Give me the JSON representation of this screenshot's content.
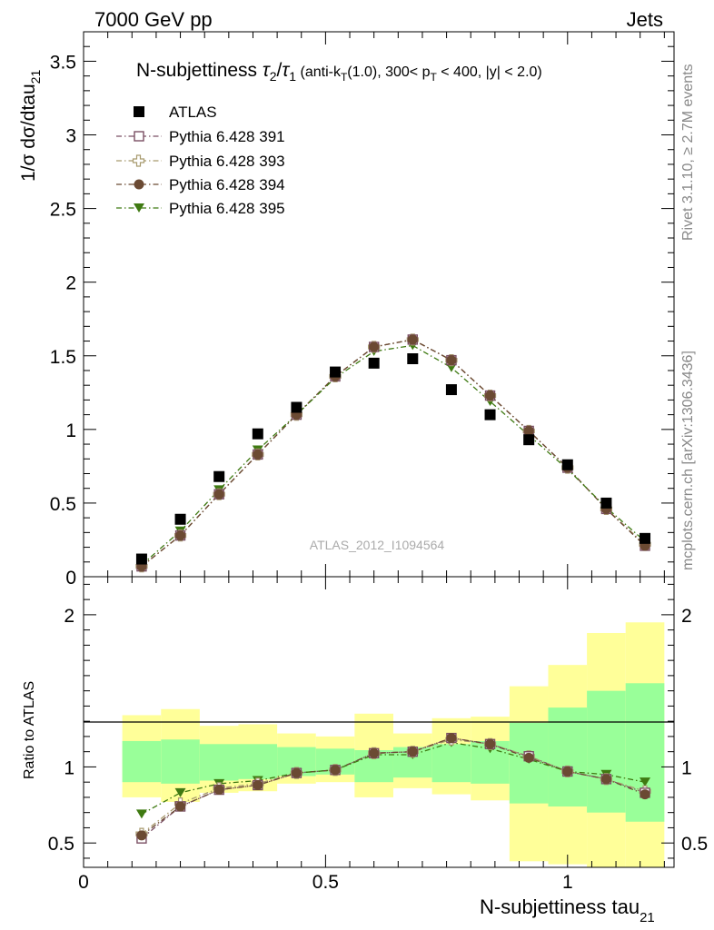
{
  "header": {
    "left": "7000 GeV pp",
    "right": "Jets"
  },
  "side_labels": {
    "rivet": "Rivet 3.1.10, ≥ 2.7M events",
    "mcplots": "mcplots.cern.ch [arXiv:1306.3436]"
  },
  "watermark": "ATLAS_2012_I1094564",
  "colors": {
    "atlas": "#000000",
    "p391": "#7a4f63",
    "p393": "#a89a6e",
    "p394": "#6b4a33",
    "p395": "#3f7a12",
    "band_inner": "#99ff99",
    "band_outer": "#ffff99"
  },
  "chart_data": [
    {
      "type": "scatter",
      "panel": "main",
      "title_parts": {
        "lead": "N-subjettiness ",
        "tau2": "τ",
        "sub2": "2",
        "slash": "/",
        "tau1": "τ",
        "sub1": "1",
        "cuts_a": " (anti-k",
        "sub_t1": "T",
        "cuts_b": "(1.0), 300< p",
        "sub_t2": "T",
        "cuts_c": " < 400, |y| < 2.0)"
      },
      "ylabel_main": "1/σ dσ/dtau",
      "ylabel_sub": "21",
      "xlim": [
        0,
        1.22
      ],
      "ylim": [
        0,
        3.7
      ],
      "yticks": [
        "0",
        "0.5",
        "1",
        "1.5",
        "2",
        "2.5",
        "3",
        "3.5"
      ],
      "ytick_values": [
        0,
        0.5,
        1,
        1.5,
        2,
        2.5,
        3,
        3.5
      ],
      "x": [
        0.12,
        0.2,
        0.28,
        0.36,
        0.44,
        0.52,
        0.6,
        0.68,
        0.76,
        0.84,
        0.92,
        1.0,
        1.08,
        1.16
      ],
      "series": [
        {
          "name": "ATLAS",
          "marker": "square-filled",
          "values": [
            0.12,
            0.39,
            0.68,
            0.97,
            1.15,
            1.39,
            1.45,
            1.48,
            1.27,
            1.1,
            0.93,
            0.76,
            0.5,
            0.26
          ]
        },
        {
          "name": "Pythia 6.428 391",
          "marker": "square-open",
          "values": [
            0.07,
            0.28,
            0.56,
            0.83,
            1.1,
            1.36,
            1.56,
            1.61,
            1.47,
            1.23,
            0.99,
            0.74,
            0.46,
            0.21
          ]
        },
        {
          "name": "Pythia 6.428 393",
          "marker": "cross-open",
          "values": [
            0.07,
            0.28,
            0.56,
            0.83,
            1.1,
            1.36,
            1.56,
            1.61,
            1.47,
            1.23,
            0.99,
            0.74,
            0.46,
            0.22
          ]
        },
        {
          "name": "Pythia 6.428 394",
          "marker": "circle-filled",
          "values": [
            0.07,
            0.28,
            0.56,
            0.83,
            1.1,
            1.36,
            1.56,
            1.61,
            1.47,
            1.23,
            0.99,
            0.74,
            0.46,
            0.21
          ]
        },
        {
          "name": "Pythia 6.428 395",
          "marker": "triangle-down-filled",
          "values": [
            0.08,
            0.31,
            0.59,
            0.86,
            1.1,
            1.35,
            1.53,
            1.57,
            1.42,
            1.19,
            0.96,
            0.73,
            0.47,
            0.24
          ]
        }
      ]
    },
    {
      "type": "line",
      "panel": "ratio",
      "ylabel": "Ratio to ATLAS",
      "xlabel_main": "N-subjettiness tau",
      "xlabel_sub": "21",
      "xlim": [
        0,
        1.22
      ],
      "ylim": [
        0.34,
        2.25
      ],
      "xticks": [
        "0",
        "0.5",
        "1"
      ],
      "xtick_values": [
        0,
        0.5,
        1
      ],
      "yticks": [
        "0.5",
        "1",
        "2"
      ],
      "ytick_values": [
        0.5,
        1,
        2
      ],
      "bin_edges": [
        0.08,
        0.16,
        0.24,
        0.32,
        0.4,
        0.48,
        0.56,
        0.64,
        0.72,
        0.8,
        0.88,
        0.96,
        1.04,
        1.12,
        1.2
      ],
      "band_inner": {
        "lo": [
          0.9,
          0.89,
          0.91,
          0.92,
          0.94,
          0.95,
          0.9,
          0.93,
          0.9,
          0.89,
          0.76,
          0.74,
          0.7,
          0.64
        ],
        "hi": [
          1.17,
          1.18,
          1.15,
          1.15,
          1.13,
          1.12,
          1.11,
          1.13,
          1.15,
          1.17,
          1.29,
          1.39,
          1.5,
          1.55
        ]
      },
      "band_outer": {
        "lo": [
          0.8,
          0.77,
          0.83,
          0.84,
          0.89,
          0.9,
          0.8,
          0.86,
          0.82,
          0.78,
          0.38,
          0.36,
          0.34,
          0.34
        ],
        "hi": [
          1.34,
          1.38,
          1.27,
          1.28,
          1.22,
          1.2,
          1.35,
          1.22,
          1.32,
          1.33,
          1.53,
          1.67,
          1.88,
          1.95
        ]
      },
      "x": [
        0.12,
        0.2,
        0.28,
        0.36,
        0.44,
        0.52,
        0.6,
        0.68,
        0.76,
        0.84,
        0.92,
        1.0,
        1.08,
        1.16
      ],
      "series": [
        {
          "name": "Pythia 6.428 391",
          "values": [
            0.53,
            0.74,
            0.85,
            0.88,
            0.96,
            0.98,
            1.09,
            1.1,
            1.19,
            1.15,
            1.07,
            0.97,
            0.92,
            0.83
          ]
        },
        {
          "name": "Pythia 6.428 393",
          "values": [
            0.56,
            0.76,
            0.86,
            0.89,
            0.96,
            0.98,
            1.09,
            1.1,
            1.18,
            1.15,
            1.07,
            0.97,
            0.92,
            0.84
          ]
        },
        {
          "name": "Pythia 6.428 394",
          "values": [
            0.55,
            0.74,
            0.85,
            0.88,
            0.96,
            0.98,
            1.09,
            1.1,
            1.19,
            1.15,
            1.06,
            0.97,
            0.92,
            0.82
          ]
        },
        {
          "name": "Pythia 6.428 395",
          "values": [
            0.69,
            0.83,
            0.89,
            0.91,
            0.96,
            0.98,
            1.08,
            1.08,
            1.16,
            1.12,
            1.05,
            0.97,
            0.95,
            0.9
          ]
        }
      ]
    }
  ]
}
